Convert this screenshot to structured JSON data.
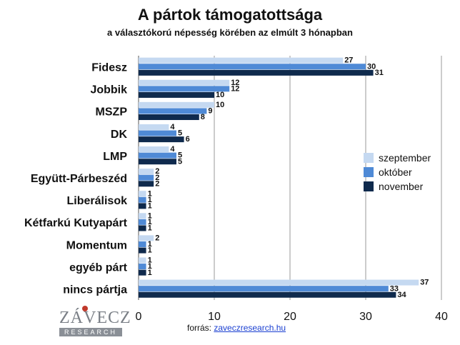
{
  "colors": {
    "szeptember": "#c5d9f1",
    "oktober": "#4f8ad6",
    "november": "#0f2a4d"
  },
  "header": {
    "title": "A pártok támogatottsága",
    "subtitle": "a választókorú népesség körében az elmúlt 3 hónapban"
  },
  "footer": {
    "source_label": "forrás:",
    "source_link": "zaveczresearch.hu",
    "logo_name": "ZÁVECZ",
    "logo_sub": "RESEARCH"
  },
  "chart_data": {
    "type": "bar",
    "orientation": "horizontal",
    "categories": [
      "Fidesz",
      "Jobbik",
      "MSZP",
      "DK",
      "LMP",
      "Együtt-Párbeszéd",
      "Liberálisok",
      "Kétfarkú Kutyapárt",
      "Momentum",
      "egyéb párt",
      "nincs pártja"
    ],
    "series": [
      {
        "name": "szeptember",
        "values": [
          27,
          12,
          10,
          4,
          4,
          2,
          1,
          1,
          2,
          1,
          37
        ]
      },
      {
        "name": "október",
        "values": [
          30,
          12,
          9,
          5,
          5,
          2,
          1,
          1,
          1,
          1,
          33
        ]
      },
      {
        "name": "november",
        "values": [
          31,
          10,
          8,
          6,
          5,
          2,
          1,
          1,
          1,
          1,
          34
        ]
      }
    ],
    "xlim": [
      0,
      40
    ],
    "xticks": [
      "0",
      "10",
      "20",
      "30",
      "40"
    ],
    "grid": true,
    "legend_position": "right"
  }
}
